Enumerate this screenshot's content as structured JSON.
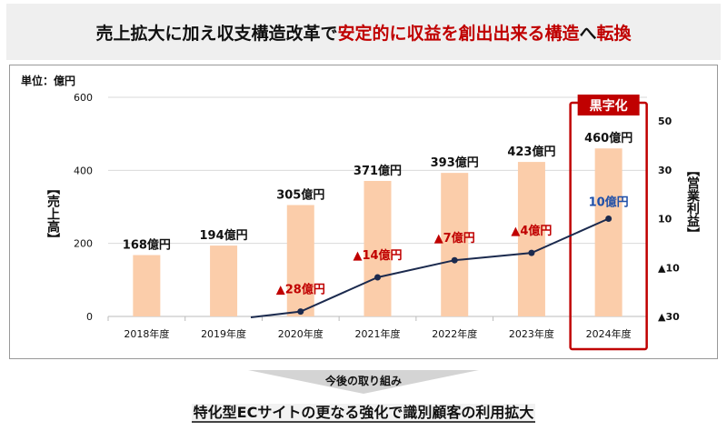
{
  "banner": {
    "part1": "売上拡大に加え収支構造改革で",
    "part2": "安定的に収益を創出出来る構造",
    "part3": "へ",
    "part4": "転換"
  },
  "chart_data": {
    "type": "bar+line",
    "unit_label": "単位：億円",
    "categories": [
      "2018年度",
      "2019年度",
      "2020年度",
      "2021年度",
      "2022年度",
      "2023年度",
      "2024年度"
    ],
    "series": [
      {
        "name": "売上高",
        "type": "bar",
        "axis": "left",
        "values": [
          168,
          194,
          305,
          371,
          393,
          423,
          460
        ],
        "labels": [
          "168億円",
          "194億円",
          "305億円",
          "371億円",
          "393億円",
          "423億円",
          "460億円"
        ]
      },
      {
        "name": "営業利益",
        "type": "line",
        "axis": "right",
        "values": [
          null,
          null,
          -28,
          -14,
          -7,
          -4,
          10
        ],
        "labels": [
          null,
          null,
          "▲28億円",
          "▲14億円",
          "▲7億円",
          "▲4億円",
          "10億円"
        ]
      }
    ],
    "left_axis": {
      "title": "【売上高】",
      "range": [
        0,
        600
      ],
      "ticks": [
        "0",
        "200",
        "400",
        "600"
      ],
      "tick_values": [
        0,
        200,
        400,
        600
      ]
    },
    "right_axis": {
      "title": "【営業利益】",
      "range": [
        -30,
        50
      ],
      "ticks": [
        "▲30",
        "▲10",
        "10",
        "30",
        "50"
      ],
      "tick_values": [
        -30,
        -10,
        10,
        30,
        50
      ]
    },
    "highlight": {
      "category": "2024年度",
      "badge": "黒字化"
    },
    "grid": true,
    "colors": {
      "bar": "#fbcdaa",
      "line": "#1b2a4e",
      "loss": "#c00000",
      "profit": "#1f4fa8",
      "highlight": "#c00000"
    }
  },
  "next_steps": {
    "label": "今後の取り組み",
    "headline": "特化型ECサイトの更なる強化で識別顧客の利用拡大"
  }
}
